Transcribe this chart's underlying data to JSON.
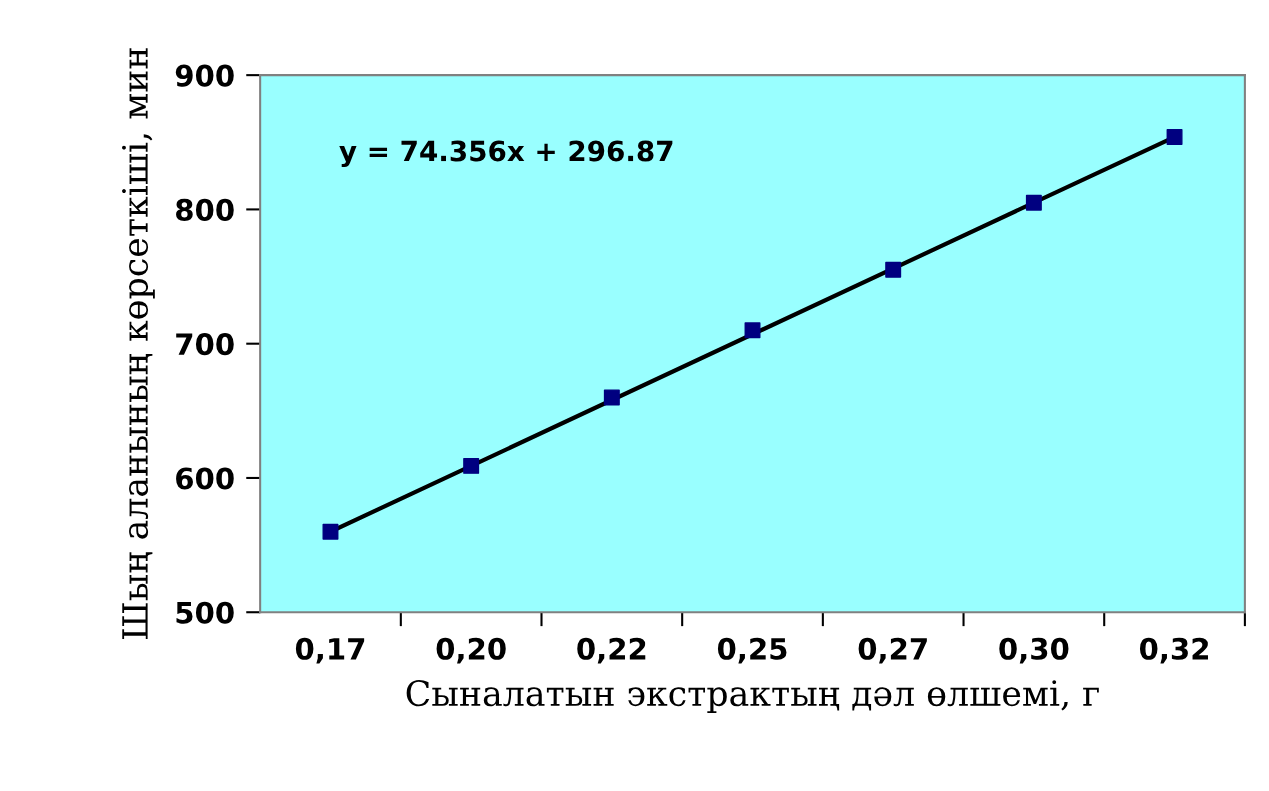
{
  "chart_data": {
    "type": "scatter",
    "xlabel": "Сыналатын экстрактың дәл өлшемі, г",
    "ylabel": "Шың аланының көрсеткіші, мин",
    "categories": [
      "0,17",
      "0,20",
      "0,22",
      "0,25",
      "0,27",
      "0,30",
      "0,32"
    ],
    "series": [
      {
        "color": "#000080",
        "marker": "square",
        "values": [
          560,
          609,
          660,
          710,
          755,
          805,
          854
        ]
      },
      {
        "type": "line",
        "color": "#000000",
        "line_style": "solid",
        "marker": "none",
        "x": [
          "0,17",
          "0,32"
        ],
        "values": [
          560,
          854
        ]
      }
    ],
    "ylim": [
      500,
      900
    ],
    "yticks": [
      500,
      600,
      700,
      800,
      900
    ],
    "grid": false,
    "legend": false,
    "annotations": [
      {
        "text": "y = 74.356x + 296.87"
      }
    ]
  }
}
